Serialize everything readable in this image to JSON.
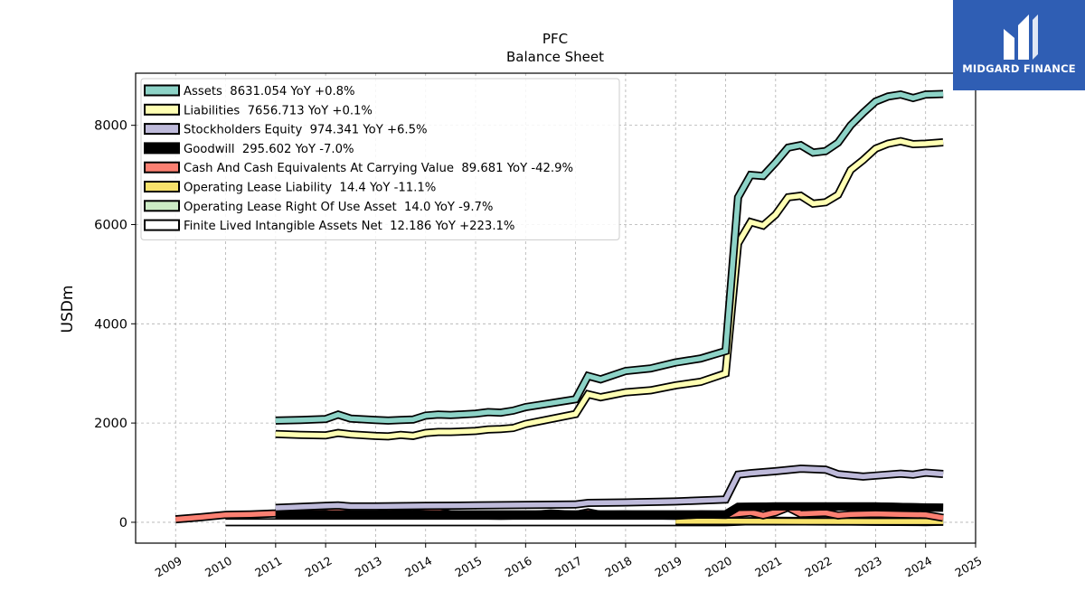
{
  "chart_data": {
    "type": "line",
    "title": "PFC",
    "subtitle": "Balance  Sheet",
    "ylabel": "USDm",
    "xlabel": "",
    "xlim": [
      2008.2,
      2025.0
    ],
    "ylim": [
      -420,
      9050
    ],
    "xticks": [
      2009,
      2010,
      2011,
      2012,
      2013,
      2014,
      2015,
      2016,
      2017,
      2018,
      2019,
      2020,
      2021,
      2022,
      2023,
      2024,
      2025
    ],
    "yticks": [
      0,
      2000,
      4000,
      6000,
      8000
    ],
    "grid": true,
    "legend_position": "upper-left",
    "series": [
      {
        "name": "Assets  8631.054 YoY +0.8%",
        "color": "#8dd3c7",
        "points": [
          [
            2011.0,
            2050
          ],
          [
            2011.5,
            2060
          ],
          [
            2012.0,
            2080
          ],
          [
            2012.25,
            2170
          ],
          [
            2012.5,
            2090
          ],
          [
            2013.0,
            2060
          ],
          [
            2013.25,
            2050
          ],
          [
            2013.5,
            2060
          ],
          [
            2013.75,
            2070
          ],
          [
            2014.0,
            2150
          ],
          [
            2014.25,
            2170
          ],
          [
            2014.5,
            2160
          ],
          [
            2015.0,
            2190
          ],
          [
            2015.25,
            2220
          ],
          [
            2015.5,
            2210
          ],
          [
            2015.75,
            2250
          ],
          [
            2016.0,
            2320
          ],
          [
            2016.5,
            2400
          ],
          [
            2017.0,
            2480
          ],
          [
            2017.25,
            2950
          ],
          [
            2017.5,
            2880
          ],
          [
            2018.0,
            3050
          ],
          [
            2018.5,
            3100
          ],
          [
            2019.0,
            3220
          ],
          [
            2019.5,
            3300
          ],
          [
            2020.0,
            3450
          ],
          [
            2020.25,
            6550
          ],
          [
            2020.5,
            7000
          ],
          [
            2020.75,
            6980
          ],
          [
            2021.0,
            7250
          ],
          [
            2021.25,
            7550
          ],
          [
            2021.5,
            7600
          ],
          [
            2021.75,
            7450
          ],
          [
            2022.0,
            7480
          ],
          [
            2022.25,
            7650
          ],
          [
            2022.5,
            8000
          ],
          [
            2022.75,
            8250
          ],
          [
            2023.0,
            8480
          ],
          [
            2023.25,
            8580
          ],
          [
            2023.5,
            8620
          ],
          [
            2023.75,
            8550
          ],
          [
            2024.0,
            8620
          ],
          [
            2024.35,
            8631
          ]
        ]
      },
      {
        "name": "Liabilities  7656.713 YoY +0.1%",
        "color": "#ffffb3",
        "points": [
          [
            2011.0,
            1780
          ],
          [
            2011.5,
            1760
          ],
          [
            2012.0,
            1750
          ],
          [
            2012.25,
            1800
          ],
          [
            2012.5,
            1770
          ],
          [
            2013.0,
            1740
          ],
          [
            2013.25,
            1730
          ],
          [
            2013.5,
            1760
          ],
          [
            2013.75,
            1740
          ],
          [
            2014.0,
            1800
          ],
          [
            2014.25,
            1820
          ],
          [
            2014.5,
            1820
          ],
          [
            2015.0,
            1840
          ],
          [
            2015.25,
            1870
          ],
          [
            2015.5,
            1880
          ],
          [
            2015.75,
            1900
          ],
          [
            2016.0,
            1980
          ],
          [
            2016.5,
            2080
          ],
          [
            2017.0,
            2180
          ],
          [
            2017.25,
            2580
          ],
          [
            2017.5,
            2520
          ],
          [
            2018.0,
            2620
          ],
          [
            2018.5,
            2660
          ],
          [
            2019.0,
            2760
          ],
          [
            2019.5,
            2830
          ],
          [
            2020.0,
            3000
          ],
          [
            2020.25,
            5620
          ],
          [
            2020.5,
            6050
          ],
          [
            2020.75,
            5980
          ],
          [
            2021.0,
            6200
          ],
          [
            2021.25,
            6550
          ],
          [
            2021.5,
            6580
          ],
          [
            2021.75,
            6420
          ],
          [
            2022.0,
            6450
          ],
          [
            2022.25,
            6600
          ],
          [
            2022.5,
            7100
          ],
          [
            2022.75,
            7300
          ],
          [
            2023.0,
            7530
          ],
          [
            2023.25,
            7630
          ],
          [
            2023.5,
            7680
          ],
          [
            2023.75,
            7620
          ],
          [
            2024.0,
            7630
          ],
          [
            2024.35,
            7657
          ]
        ]
      },
      {
        "name": "Stockholders Equity  974.341 YoY +6.5%",
        "color": "#bebada",
        "points": [
          [
            2011.0,
            290
          ],
          [
            2011.5,
            310
          ],
          [
            2012.0,
            330
          ],
          [
            2012.25,
            340
          ],
          [
            2012.5,
            320
          ],
          [
            2013.0,
            320
          ],
          [
            2014.0,
            330
          ],
          [
            2015.0,
            340
          ],
          [
            2016.0,
            350
          ],
          [
            2017.0,
            360
          ],
          [
            2017.25,
            390
          ],
          [
            2018.0,
            400
          ],
          [
            2019.0,
            420
          ],
          [
            2020.0,
            460
          ],
          [
            2020.25,
            960
          ],
          [
            2020.5,
            990
          ],
          [
            2021.0,
            1030
          ],
          [
            2021.5,
            1080
          ],
          [
            2022.0,
            1060
          ],
          [
            2022.25,
            970
          ],
          [
            2022.75,
            920
          ],
          [
            2023.0,
            940
          ],
          [
            2023.5,
            980
          ],
          [
            2023.75,
            960
          ],
          [
            2024.0,
            1000
          ],
          [
            2024.35,
            974
          ]
        ]
      },
      {
        "name": "Goodwill  295.602 YoY -7.0%",
        "color": "#000000",
        "points": [
          [
            2011.0,
            160
          ],
          [
            2012.0,
            160
          ],
          [
            2013.0,
            160
          ],
          [
            2014.0,
            160
          ],
          [
            2015.0,
            160
          ],
          [
            2016.0,
            160
          ],
          [
            2017.0,
            160
          ],
          [
            2018.0,
            160
          ],
          [
            2019.0,
            160
          ],
          [
            2020.0,
            160
          ],
          [
            2020.25,
            310
          ],
          [
            2021.0,
            320
          ],
          [
            2022.0,
            320
          ],
          [
            2023.0,
            320
          ],
          [
            2024.0,
            300
          ],
          [
            2024.35,
            296
          ]
        ]
      },
      {
        "name": "Cash And Cash Equivalents At Carrying Value  89.681 YoY -42.9%",
        "color": "#fb8072",
        "points": [
          [
            2009.0,
            60
          ],
          [
            2009.5,
            100
          ],
          [
            2010.0,
            150
          ],
          [
            2010.5,
            160
          ],
          [
            2011.0,
            180
          ],
          [
            2011.25,
            220
          ],
          [
            2011.75,
            200
          ],
          [
            2012.0,
            190
          ],
          [
            2012.25,
            240
          ],
          [
            2012.5,
            150
          ],
          [
            2013.0,
            150
          ],
          [
            2013.25,
            190
          ],
          [
            2013.75,
            170
          ],
          [
            2014.0,
            200
          ],
          [
            2014.25,
            210
          ],
          [
            2014.5,
            160
          ],
          [
            2015.0,
            140
          ],
          [
            2015.5,
            130
          ],
          [
            2016.0,
            140
          ],
          [
            2016.5,
            180
          ],
          [
            2017.0,
            150
          ],
          [
            2017.25,
            200
          ],
          [
            2017.5,
            150
          ],
          [
            2018.0,
            160
          ],
          [
            2018.5,
            140
          ],
          [
            2019.0,
            130
          ],
          [
            2019.5,
            160
          ],
          [
            2020.0,
            150
          ],
          [
            2020.5,
            200
          ],
          [
            2020.75,
            140
          ],
          [
            2021.0,
            200
          ],
          [
            2021.25,
            300
          ],
          [
            2021.5,
            170
          ],
          [
            2022.0,
            190
          ],
          [
            2022.25,
            140
          ],
          [
            2022.5,
            160
          ],
          [
            2023.0,
            170
          ],
          [
            2023.5,
            160
          ],
          [
            2024.0,
            150
          ],
          [
            2024.35,
            90
          ]
        ]
      },
      {
        "name": "Operating Lease Liability  14.4 YoY -11.1%",
        "color": "#f7e26b",
        "points": [
          [
            2019.0,
            20
          ],
          [
            2020.0,
            20
          ],
          [
            2021.0,
            18
          ],
          [
            2022.0,
            17
          ],
          [
            2023.0,
            16
          ],
          [
            2024.35,
            14.4
          ]
        ]
      },
      {
        "name": "Operating Lease Right Of Use Asset  14.0 YoY -9.7%",
        "color": "#ccebc5",
        "points": [
          [
            2019.0,
            20
          ],
          [
            2020.0,
            19
          ],
          [
            2021.0,
            17
          ],
          [
            2022.0,
            16
          ],
          [
            2023.0,
            15
          ],
          [
            2024.0,
            15
          ],
          [
            2024.35,
            14.0
          ]
        ]
      },
      {
        "name": "Finite Lived Intangible Assets Net  12.186 YoY +223.1%",
        "color": "#ffffff",
        "points": [
          [
            2010.0,
            0
          ],
          [
            2011.0,
            0
          ],
          [
            2015.0,
            0
          ],
          [
            2020.0,
            0
          ],
          [
            2020.5,
            20
          ],
          [
            2021.0,
            30
          ],
          [
            2022.0,
            25
          ],
          [
            2023.0,
            10
          ],
          [
            2024.0,
            5
          ],
          [
            2024.35,
            12.186
          ]
        ]
      }
    ]
  },
  "branding": {
    "logo_text": "MIDGARD FINANCE",
    "logo_icon": "midgard-m-logo-icon"
  }
}
